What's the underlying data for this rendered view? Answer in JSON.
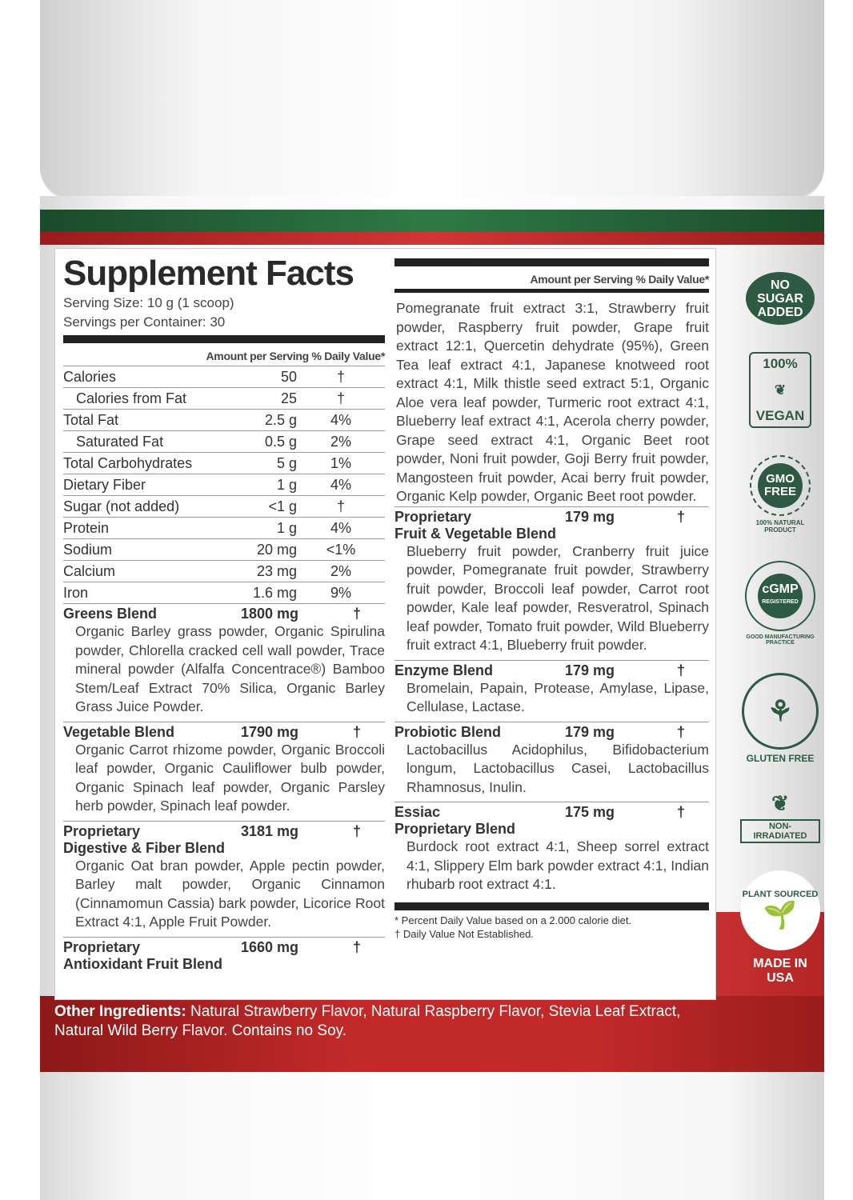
{
  "left": {
    "title": "Supplement Facts",
    "serving_size": "Serving Size: 10 g (1 scoop)",
    "servings": "Servings per Container: 30",
    "header": "Amount per Serving  % Daily Value*",
    "nutrients": [
      {
        "name": "Calories",
        "amount": "50",
        "dv": "†",
        "indent": false
      },
      {
        "name": "Calories from Fat",
        "amount": "25",
        "dv": "†",
        "indent": true
      },
      {
        "name": "Total Fat",
        "amount": "2.5 g",
        "dv": "4%",
        "indent": false
      },
      {
        "name": "Saturated Fat",
        "amount": "0.5 g",
        "dv": "2%",
        "indent": true
      },
      {
        "name": "Total Carbohydrates",
        "amount": "5 g",
        "dv": "1%",
        "indent": false
      },
      {
        "name": "Dietary Fiber",
        "amount": "1 g",
        "dv": "4%",
        "indent": false
      },
      {
        "name": "Sugar (not added)",
        "amount": "<1 g",
        "dv": "†",
        "indent": false
      },
      {
        "name": "Protein",
        "amount": "1 g",
        "dv": "4%",
        "indent": false
      },
      {
        "name": "Sodium",
        "amount": "20 mg",
        "dv": "<1%",
        "indent": false
      },
      {
        "name": "Calcium",
        "amount": "23 mg",
        "dv": "2%",
        "indent": false
      },
      {
        "name": "Iron",
        "amount": "1.6 mg",
        "dv": "9%",
        "indent": false
      }
    ],
    "blends": [
      {
        "name": "Greens Blend",
        "sub": "",
        "amount": "1800 mg",
        "dv": "†",
        "ingredients": "Organic Barley grass powder, Organic Spirulina powder, Chlorella cracked cell wall powder, Trace mineral powder (Alfalfa Concentrace®) Bamboo Stem/Leaf Extract 70% Silica, Organic Barley Grass Juice Powder."
      },
      {
        "name": "Vegetable Blend",
        "sub": "",
        "amount": "1790 mg",
        "dv": "†",
        "ingredients": "Organic Carrot rhizome powder, Organic Broccoli leaf powder, Organic Cauliflower bulb powder, Organic Spinach leaf powder, Organic Parsley herb powder, Spinach leaf powder."
      },
      {
        "name": "Proprietary",
        "sub": "Digestive & Fiber Blend",
        "amount": "3181 mg",
        "dv": "†",
        "ingredients": "Organic Oat bran powder, Apple pectin powder, Barley malt powder, Organic Cinnamon (Cinnamomun Cassia) bark powder, Licorice Root Extract 4:1, Apple Fruit Powder."
      },
      {
        "name": "Proprietary",
        "sub": "Antioxidant Fruit Blend",
        "amount": "1660 mg",
        "dv": "†",
        "ingredients": ""
      }
    ]
  },
  "right": {
    "header": "Amount per Serving  % Daily Value*",
    "continued": "Pomegranate fruit extract 3:1, Strawberry fruit powder, Raspberry fruit powder, Grape fruit extract 12:1, Quercetin dehydrate (95%), Green Tea leaf extract 4:1, Japanese knotweed root extract 4:1, Milk thistle seed extract 5:1, Organic Aloe vera leaf powder, Turmeric root extract 4:1, Blueberry leaf extract 4:1, Acerola cherry powder, Grape seed extract 4:1, Organic Beet root powder, Noni fruit powder, Goji Berry fruit powder, Mangosteen fruit powder, Acai berry fruit powder, Organic Kelp powder, Organic Beet root powder.",
    "blends": [
      {
        "name": "Proprietary",
        "sub": "Fruit & Vegetable Blend",
        "amount": "179 mg",
        "dv": "†",
        "ingredients": "Blueberry fruit powder, Cranberry fruit juice powder, Pomegranate fruit powder, Strawberry fruit powder, Broccoli leaf powder, Carrot root powder, Kale leaf powder, Resveratrol, Spinach leaf powder, Tomato fruit powder, Wild Blueberry fruit extract 4:1, Blueberry fruit powder."
      },
      {
        "name": "Enzyme Blend",
        "sub": "",
        "amount": "179 mg",
        "dv": "†",
        "ingredients": "Bromelain, Papain, Protease, Amylase, Lipase, Cellulase, Lactase."
      },
      {
        "name": "Probiotic Blend",
        "sub": "",
        "amount": "179 mg",
        "dv": "†",
        "ingredients": "Lactobacillus Acidophilus, Bifidobacterium longum, Lactobacillus Casei, Lactobacillus Rhamnosus, Inulin."
      },
      {
        "name": "Essiac",
        "sub": "Proprietary Blend",
        "amount": "175 mg",
        "dv": "†",
        "ingredients": "Burdock root extract 4:1, Sheep sorrel extract 4:1, Slippery Elm bark powder extract 4:1, Indian rhubarb root extract 4:1."
      }
    ],
    "footnote1": "* Percent Daily Value based on a 2.000 calorie diet.",
    "footnote2": "† Daily Value Not Established."
  },
  "other": {
    "label": "Other Ingredients:",
    "text": " Natural Strawberry Flavor, Natural Raspberry Flavor, Stevia Leaf Extract, Natural Wild Berry Flavor. Contains no Soy."
  },
  "badges": {
    "no_sugar": "NO SUGAR ADDED",
    "vegan_top": "100%",
    "vegan_bottom": "VEGAN",
    "gmo": "GMO FREE",
    "gmo_ring": "100% NATURAL PRODUCT",
    "cgmp": "cGMP",
    "cgmp_sub": "REGISTERED",
    "cgmp_ring": "GOOD MANUFACTURING PRACTICE",
    "gluten": "GLUTEN FREE",
    "irradiated": "NON-IRRADIATED",
    "plant": "PLANT SOURCED",
    "usa": "MADE IN USA"
  },
  "colors": {
    "green": "#2e5a44",
    "red": "#c22a2a",
    "stripe_green": "#2e7a45"
  }
}
